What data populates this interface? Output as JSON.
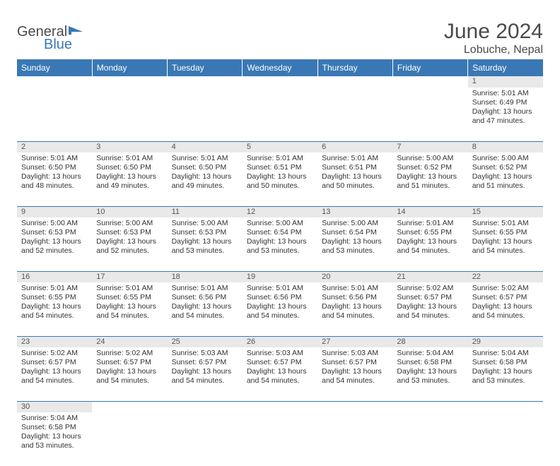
{
  "logo": {
    "word1": "General",
    "word2": "Blue"
  },
  "title": "June 2024",
  "location": "Lobuche, Nepal",
  "colors": {
    "header_bg": "#3a78b5",
    "header_text": "#ffffff",
    "daynum_bg": "#e9e9e9",
    "border": "#3a78b5",
    "text": "#333333",
    "logo_gray": "#4a4a4a",
    "logo_blue": "#3a78b5"
  },
  "weekdays": [
    "Sunday",
    "Monday",
    "Tuesday",
    "Wednesday",
    "Thursday",
    "Friday",
    "Saturday"
  ],
  "weeks": [
    [
      null,
      null,
      null,
      null,
      null,
      null,
      {
        "d": "1",
        "sr": "5:01 AM",
        "ss": "6:49 PM",
        "dl": "13 hours and 47 minutes."
      }
    ],
    [
      {
        "d": "2",
        "sr": "5:01 AM",
        "ss": "6:50 PM",
        "dl": "13 hours and 48 minutes."
      },
      {
        "d": "3",
        "sr": "5:01 AM",
        "ss": "6:50 PM",
        "dl": "13 hours and 49 minutes."
      },
      {
        "d": "4",
        "sr": "5:01 AM",
        "ss": "6:50 PM",
        "dl": "13 hours and 49 minutes."
      },
      {
        "d": "5",
        "sr": "5:01 AM",
        "ss": "6:51 PM",
        "dl": "13 hours and 50 minutes."
      },
      {
        "d": "6",
        "sr": "5:01 AM",
        "ss": "6:51 PM",
        "dl": "13 hours and 50 minutes."
      },
      {
        "d": "7",
        "sr": "5:00 AM",
        "ss": "6:52 PM",
        "dl": "13 hours and 51 minutes."
      },
      {
        "d": "8",
        "sr": "5:00 AM",
        "ss": "6:52 PM",
        "dl": "13 hours and 51 minutes."
      }
    ],
    [
      {
        "d": "9",
        "sr": "5:00 AM",
        "ss": "6:53 PM",
        "dl": "13 hours and 52 minutes."
      },
      {
        "d": "10",
        "sr": "5:00 AM",
        "ss": "6:53 PM",
        "dl": "13 hours and 52 minutes."
      },
      {
        "d": "11",
        "sr": "5:00 AM",
        "ss": "6:53 PM",
        "dl": "13 hours and 53 minutes."
      },
      {
        "d": "12",
        "sr": "5:00 AM",
        "ss": "6:54 PM",
        "dl": "13 hours and 53 minutes."
      },
      {
        "d": "13",
        "sr": "5:00 AM",
        "ss": "6:54 PM",
        "dl": "13 hours and 53 minutes."
      },
      {
        "d": "14",
        "sr": "5:01 AM",
        "ss": "6:55 PM",
        "dl": "13 hours and 54 minutes."
      },
      {
        "d": "15",
        "sr": "5:01 AM",
        "ss": "6:55 PM",
        "dl": "13 hours and 54 minutes."
      }
    ],
    [
      {
        "d": "16",
        "sr": "5:01 AM",
        "ss": "6:55 PM",
        "dl": "13 hours and 54 minutes."
      },
      {
        "d": "17",
        "sr": "5:01 AM",
        "ss": "6:55 PM",
        "dl": "13 hours and 54 minutes."
      },
      {
        "d": "18",
        "sr": "5:01 AM",
        "ss": "6:56 PM",
        "dl": "13 hours and 54 minutes."
      },
      {
        "d": "19",
        "sr": "5:01 AM",
        "ss": "6:56 PM",
        "dl": "13 hours and 54 minutes."
      },
      {
        "d": "20",
        "sr": "5:01 AM",
        "ss": "6:56 PM",
        "dl": "13 hours and 54 minutes."
      },
      {
        "d": "21",
        "sr": "5:02 AM",
        "ss": "6:57 PM",
        "dl": "13 hours and 54 minutes."
      },
      {
        "d": "22",
        "sr": "5:02 AM",
        "ss": "6:57 PM",
        "dl": "13 hours and 54 minutes."
      }
    ],
    [
      {
        "d": "23",
        "sr": "5:02 AM",
        "ss": "6:57 PM",
        "dl": "13 hours and 54 minutes."
      },
      {
        "d": "24",
        "sr": "5:02 AM",
        "ss": "6:57 PM",
        "dl": "13 hours and 54 minutes."
      },
      {
        "d": "25",
        "sr": "5:03 AM",
        "ss": "6:57 PM",
        "dl": "13 hours and 54 minutes."
      },
      {
        "d": "26",
        "sr": "5:03 AM",
        "ss": "6:57 PM",
        "dl": "13 hours and 54 minutes."
      },
      {
        "d": "27",
        "sr": "5:03 AM",
        "ss": "6:57 PM",
        "dl": "13 hours and 54 minutes."
      },
      {
        "d": "28",
        "sr": "5:04 AM",
        "ss": "6:58 PM",
        "dl": "13 hours and 53 minutes."
      },
      {
        "d": "29",
        "sr": "5:04 AM",
        "ss": "6:58 PM",
        "dl": "13 hours and 53 minutes."
      }
    ],
    [
      {
        "d": "30",
        "sr": "5:04 AM",
        "ss": "6:58 PM",
        "dl": "13 hours and 53 minutes."
      },
      null,
      null,
      null,
      null,
      null,
      null
    ]
  ],
  "labels": {
    "sunrise": "Sunrise:",
    "sunset": "Sunset:",
    "daylight": "Daylight:"
  }
}
